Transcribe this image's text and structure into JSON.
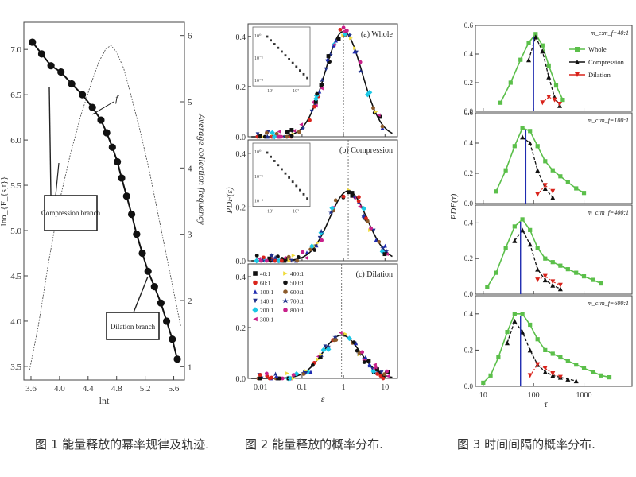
{
  "captions": {
    "fig1": "图 1 能量释放的幂率规律及轨迹.",
    "fig2": "图 2 能量释放的概率分布.",
    "fig3": "图 3 时间间隔的概率分布."
  },
  "colors": {
    "black": "#111111",
    "green": "#5bbf4a",
    "red": "#d9231b",
    "blue": "#1f2bb0",
    "cyan": "#1ac8e6",
    "yellow": "#f0dc3c",
    "magenta": "#c8208a",
    "brown": "#8b5a2b",
    "navy": "#20308a"
  },
  "chart_data": [
    {
      "id": "fig1",
      "type": "line",
      "xlabel": "lnt",
      "ylabel": "lnα_{F_{s,t}}",
      "y2label": "Average collection frequency",
      "xlim": [
        3.5,
        5.75
      ],
      "ylim": [
        3.35,
        7.3
      ],
      "y2lim": [
        0.8,
        6.2
      ],
      "xticks": [
        "3.6",
        "4.0",
        "4.4",
        "4.8",
        "5.2",
        "5.6"
      ],
      "yticks": [
        "3.5",
        "4.0",
        "4.5",
        "5.0",
        "5.5",
        "6.0",
        "6.5",
        "7.0"
      ],
      "y2ticks": [
        "1",
        "2",
        "3",
        "4",
        "5",
        "6"
      ],
      "annotations": {
        "compression": "Compression branch",
        "dilation": "Dilation branch",
        "f_label": "f"
      },
      "series": [
        {
          "style": "dots-line",
          "x": [
            3.62,
            3.75,
            3.88,
            4.02,
            4.17,
            4.32,
            4.46,
            4.58,
            4.66,
            4.74,
            4.81,
            4.87,
            4.94,
            5.01,
            5.08,
            5.16,
            5.24,
            5.33,
            5.42,
            5.5,
            5.58,
            5.65
          ],
          "y": [
            7.08,
            6.95,
            6.82,
            6.75,
            6.62,
            6.5,
            6.36,
            6.22,
            6.08,
            5.92,
            5.76,
            5.58,
            5.38,
            5.18,
            4.96,
            4.75,
            4.55,
            4.38,
            4.2,
            4.0,
            3.8,
            3.58
          ]
        },
        {
          "style": "thin-curve",
          "axis": "right",
          "x": [
            3.58,
            3.7,
            3.85,
            4.0,
            4.15,
            4.3,
            4.45,
            4.55,
            4.65,
            4.72,
            4.8,
            4.9,
            5.0,
            5.12,
            5.25,
            5.4,
            5.55,
            5.7
          ],
          "y": [
            0.95,
            1.6,
            2.6,
            3.5,
            4.2,
            4.8,
            5.3,
            5.6,
            5.8,
            5.85,
            5.75,
            5.5,
            5.1,
            4.6,
            4.0,
            3.2,
            2.4,
            1.6
          ]
        }
      ]
    },
    {
      "id": "fig2",
      "type": "scatter",
      "xlabel": "ε",
      "ylabel": "PDF(ε)",
      "xscale": "log",
      "xlim": [
        0.005,
        20
      ],
      "xticks": [
        "0.01",
        "0.1",
        "1",
        "10"
      ],
      "panels": [
        {
          "title": "(a) Whole",
          "ylim": [
            0,
            0.45
          ],
          "yticks": [
            "0.0",
            "0.2",
            "0.4"
          ],
          "peak": 0.42,
          "center": 1.0,
          "inset": {
            "yticks": [
              "10⁰",
              "10⁻¹",
              "10⁻²"
            ],
            "xticks": [
              "10¹",
              "10²"
            ]
          }
        },
        {
          "title": "(b) Compression",
          "ylim": [
            0,
            0.45
          ],
          "yticks": [
            "0.0",
            "0.2",
            "0.4"
          ],
          "peak": 0.26,
          "center": 1.3,
          "inset": {
            "yticks": [
              "10⁰",
              "10⁻¹",
              "10⁻²"
            ],
            "xticks": [
              "10¹",
              "10²"
            ]
          }
        },
        {
          "title": "(c) Dilation",
          "ylim": [
            0,
            0.45
          ],
          "yticks": [
            "0.0",
            "0.2",
            "0.4"
          ],
          "peak": 0.17,
          "center": 0.9
        }
      ],
      "legend": [
        {
          "label": "40:1",
          "color": "#111111",
          "marker": "square"
        },
        {
          "label": "60:1",
          "color": "#d9231b",
          "marker": "circle"
        },
        {
          "label": "100:1",
          "color": "#1f2bb0",
          "marker": "triangle"
        },
        {
          "label": "140:1",
          "color": "#20308a",
          "marker": "tri-down"
        },
        {
          "label": "200:1",
          "color": "#1ac8e6",
          "marker": "diamond"
        },
        {
          "label": "300:1",
          "color": "#c8208a",
          "marker": "tri-left"
        },
        {
          "label": "400:1",
          "color": "#f0dc3c",
          "marker": "tri-right"
        },
        {
          "label": "500:1",
          "color": "#111111",
          "marker": "hexagon"
        },
        {
          "label": "600:1",
          "color": "#8b5a2b",
          "marker": "circle"
        },
        {
          "label": "700:1",
          "color": "#20308a",
          "marker": "star"
        },
        {
          "label": "800:1",
          "color": "#c8208a",
          "marker": "pentagon"
        }
      ]
    },
    {
      "id": "fig3",
      "type": "line",
      "xlabel": "τ",
      "ylabel": "PDF(τ)",
      "xscale": "log",
      "xlim": [
        7,
        9000
      ],
      "xticks": [
        "10",
        "100",
        "1000"
      ],
      "legend": [
        "Whole",
        "Compression",
        "Dilation"
      ],
      "panels": [
        {
          "title": "m_c:m_f=40:1",
          "ylim": [
            0,
            0.6
          ],
          "yticks": [
            "0.0",
            "0.2",
            "0.4",
            "0.6"
          ],
          "whole": {
            "x": [
              22,
              35,
              55,
              80,
              110,
              150,
              200,
              280,
              380
            ],
            "y": [
              0.06,
              0.2,
              0.36,
              0.48,
              0.54,
              0.46,
              0.32,
              0.18,
              0.08
            ]
          },
          "compression": {
            "x": [
              80,
              110,
              150,
              200,
              260,
              330
            ],
            "y": [
              0.36,
              0.52,
              0.42,
              0.24,
              0.1,
              0.04
            ]
          },
          "dilation": {
            "x": [
              150,
              200,
              260,
              330
            ],
            "y": [
              0.06,
              0.1,
              0.08,
              0.05
            ]
          },
          "peak_tau": 100
        },
        {
          "title": "m_c:m_f=100:1",
          "ylim": [
            0,
            0.6
          ],
          "yticks": [
            "0.0",
            "0.2",
            "0.4",
            "0.6"
          ],
          "whole": {
            "x": [
              18,
              28,
              42,
              60,
              85,
              120,
              170,
              240,
              340,
              480,
              700,
              1000
            ],
            "y": [
              0.08,
              0.22,
              0.38,
              0.5,
              0.48,
              0.38,
              0.28,
              0.22,
              0.18,
              0.14,
              0.1,
              0.07
            ]
          },
          "compression": {
            "x": [
              60,
              85,
              120,
              170,
              240
            ],
            "y": [
              0.44,
              0.4,
              0.22,
              0.1,
              0.04
            ]
          },
          "dilation": {
            "x": [
              120,
              170,
              240
            ],
            "y": [
              0.06,
              0.12,
              0.08
            ]
          },
          "peak_tau": 70
        },
        {
          "title": "m_c:m_f=400:1",
          "ylim": [
            0,
            0.5
          ],
          "yticks": [
            "0.0",
            "0.2",
            "0.4"
          ],
          "whole": {
            "x": [
              12,
              18,
              28,
              42,
              60,
              85,
              120,
              170,
              240,
              340,
              480,
              700,
              1000,
              1500,
              2200
            ],
            "y": [
              0.04,
              0.12,
              0.26,
              0.38,
              0.42,
              0.36,
              0.26,
              0.2,
              0.18,
              0.16,
              0.14,
              0.12,
              0.1,
              0.08,
              0.06
            ]
          },
          "compression": {
            "x": [
              42,
              60,
              85,
              120,
              170,
              240,
              340
            ],
            "y": [
              0.3,
              0.36,
              0.28,
              0.14,
              0.08,
              0.05,
              0.03
            ]
          },
          "dilation": {
            "x": [
              120,
              170,
              240,
              340
            ],
            "y": [
              0.08,
              0.1,
              0.07,
              0.05
            ]
          },
          "peak_tau": 55
        },
        {
          "title": "m_c:m_f=600:1",
          "ylim": [
            0,
            0.5
          ],
          "yticks": [
            "0.0",
            "0.2",
            "0.4"
          ],
          "whole": {
            "x": [
              10,
              14,
              20,
              30,
              42,
              60,
              85,
              120,
              170,
              240,
              340,
              480,
              700,
              1000,
              1500,
              2200,
              3200
            ],
            "y": [
              0.02,
              0.06,
              0.16,
              0.3,
              0.4,
              0.4,
              0.34,
              0.26,
              0.2,
              0.18,
              0.16,
              0.14,
              0.12,
              0.1,
              0.08,
              0.06,
              0.05
            ]
          },
          "compression": {
            "x": [
              30,
              42,
              60,
              85,
              120,
              170,
              240,
              340,
              480,
              700
            ],
            "y": [
              0.24,
              0.36,
              0.3,
              0.2,
              0.12,
              0.08,
              0.06,
              0.05,
              0.04,
              0.03
            ]
          },
          "dilation": {
            "x": [
              85,
              120,
              170,
              240,
              340
            ],
            "y": [
              0.06,
              0.12,
              0.1,
              0.07,
              0.05
            ]
          },
          "peak_tau": 55
        }
      ]
    }
  ]
}
